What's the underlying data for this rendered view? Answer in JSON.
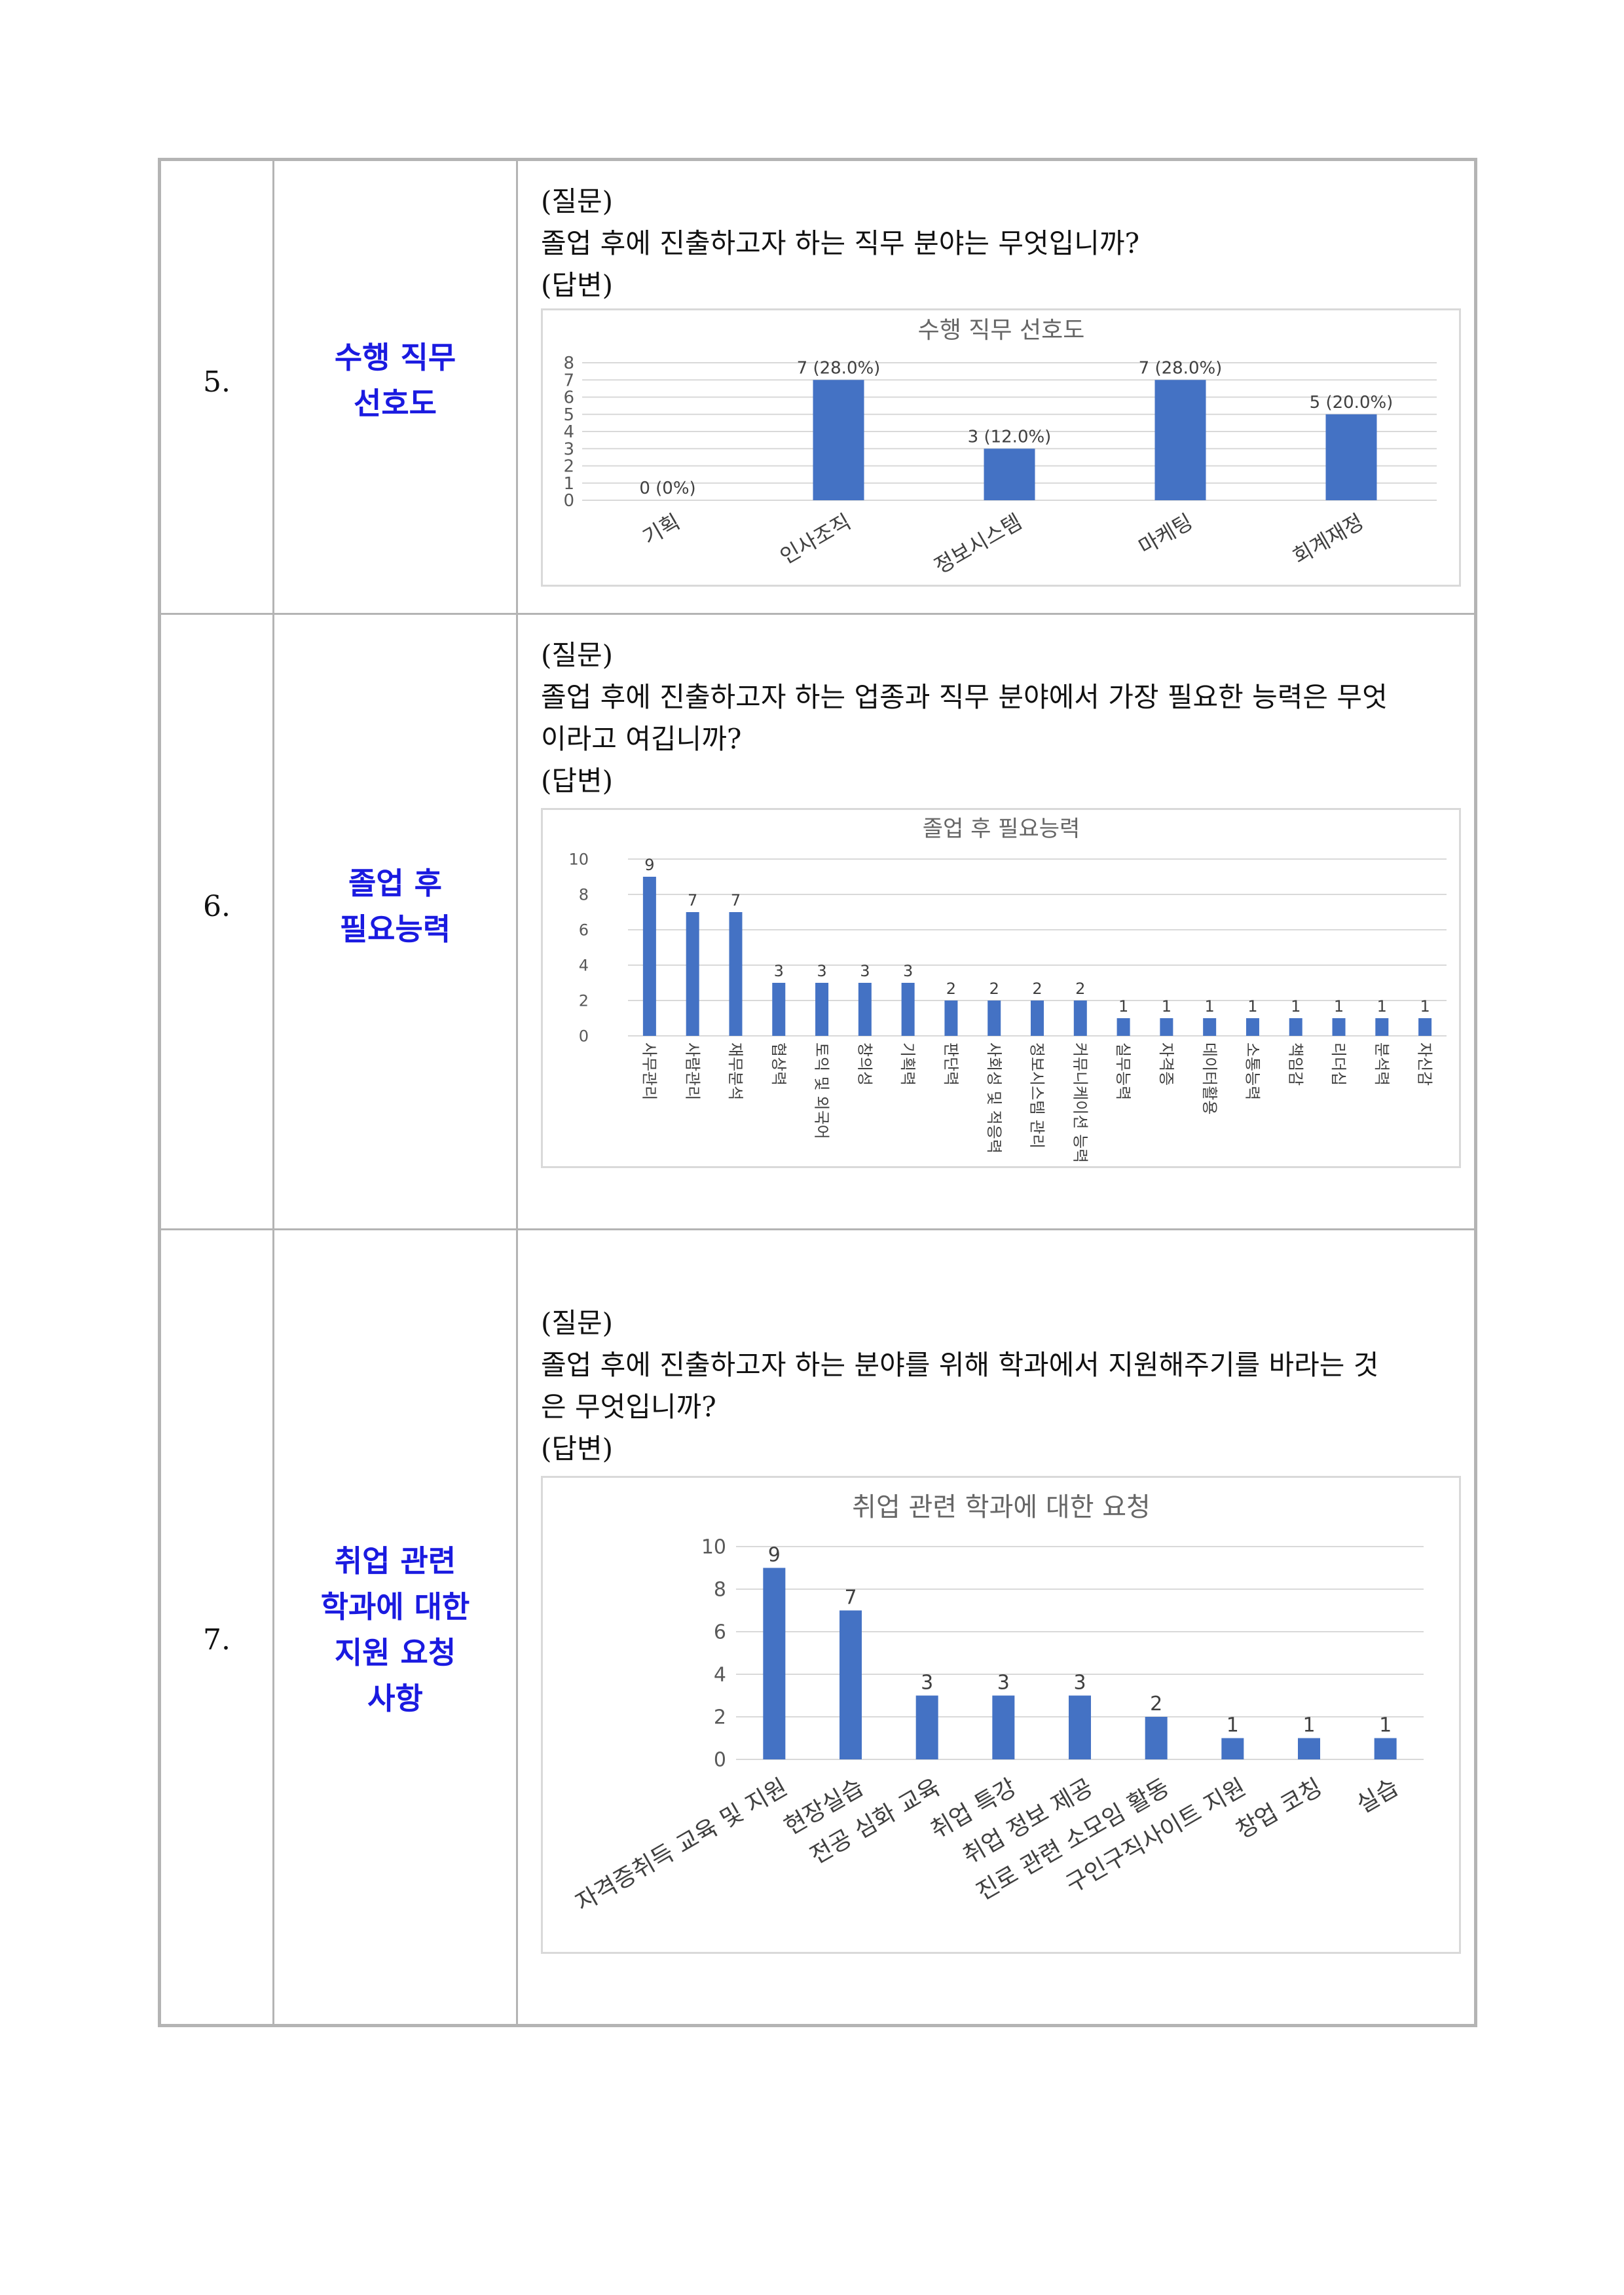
{
  "rows": [
    {
      "number": "5.",
      "topic_lines": [
        "수행 직무",
        "선호도"
      ],
      "question_label": "(질문)",
      "question": "졸업 후에 진출하고자 하는 직무 분야는 무엇입니까?",
      "answer_label": "(답변)"
    },
    {
      "number": "6.",
      "topic_lines": [
        "졸업 후",
        "필요능력"
      ],
      "question_label": "(질문)",
      "question_lines": [
        "졸업 후에 진출하고자 하는 업종과 직무 분야에서 가장 필요한 능력은 무엇",
        "이라고 여깁니까?"
      ],
      "answer_label": "(답변)"
    },
    {
      "number": "7.",
      "topic_lines": [
        "취업 관련",
        "학과에 대한",
        "지원 요청",
        "사항"
      ],
      "question_label": "(질문)",
      "question_lines": [
        "졸업 후에 진출하고자 하는 분야를 위해 학과에서 지원해주기를 바라는 것",
        "은 무엇입니까?"
      ],
      "answer_label": "(답변)"
    }
  ],
  "chart_data": [
    {
      "type": "bar",
      "title": "수행 직무 선호도",
      "categories": [
        "기획",
        "인사조직",
        "정보시스템",
        "마케팅",
        "회계재정"
      ],
      "values": [
        0,
        7,
        3,
        7,
        5
      ],
      "data_labels": [
        "0 (0%)",
        "7 (28.0%)",
        "3 (12.0%)",
        "7 (28.0%)",
        "5 (20.0%)"
      ],
      "y_ticks": [
        "0",
        "1",
        "2",
        "3",
        "4",
        "5",
        "6",
        "7",
        "8"
      ],
      "ylim": [
        0,
        8
      ],
      "grid": true,
      "bar_color": "#4472c4"
    },
    {
      "type": "bar",
      "title": "졸업 후 필요능력",
      "categories": [
        "사무관리",
        "사람관리",
        "재무분석",
        "협상력",
        "토익 및 외국어",
        "창의성",
        "기획력",
        "판단력",
        "사회성 및 적응력",
        "정보시스템 관리",
        "커뮤니케이션 능력",
        "실무능력",
        "자격증",
        "데이터활용",
        "소통능력",
        "책임감",
        "리더십",
        "분석력",
        "자신감"
      ],
      "values": [
        9,
        7,
        7,
        3,
        3,
        3,
        3,
        2,
        2,
        2,
        2,
        1,
        1,
        1,
        1,
        1,
        1,
        1,
        1
      ],
      "y_ticks": [
        "0",
        "2",
        "4",
        "6",
        "8",
        "10"
      ],
      "ylim": [
        0,
        10
      ],
      "grid": true,
      "bar_color": "#4472c4"
    },
    {
      "type": "bar",
      "title": "취업 관련 학과에 대한 요청",
      "categories": [
        "자격증취득 교육 및 지원",
        "현장실습",
        "전공 심화 교육",
        "취업 특강",
        "취업 정보 제공",
        "진로 관련 소모임 활동",
        "구인구직사이트 지원",
        "창업 코칭",
        "실습"
      ],
      "values": [
        9,
        7,
        3,
        3,
        3,
        2,
        1,
        1,
        1
      ],
      "y_ticks": [
        "0",
        "2",
        "4",
        "6",
        "8",
        "10"
      ],
      "ylim": [
        0,
        10
      ],
      "grid": true,
      "bar_color": "#4472c4"
    }
  ]
}
